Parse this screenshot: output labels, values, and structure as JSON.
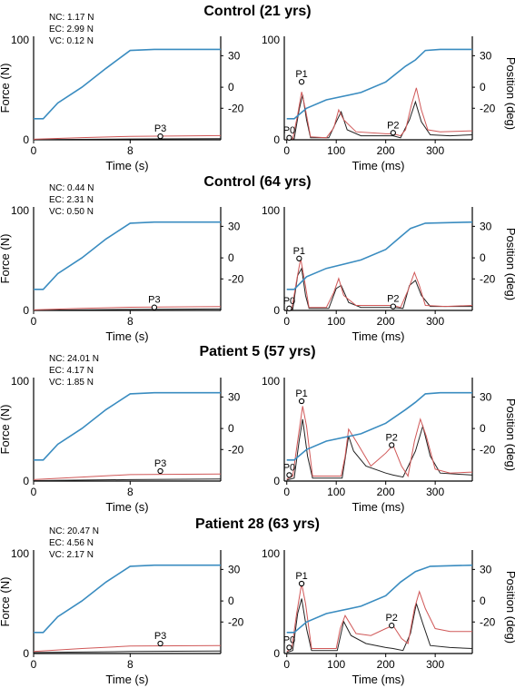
{
  "colors": {
    "position": "#3a8cc0",
    "nc": "#222222",
    "ec": "#d05858",
    "vc": "#c84040",
    "axis": "#000000"
  },
  "panels": [
    {
      "title": "Control (21 yrs)",
      "legend": [
        "NC: 1.17 N",
        "EC: 2.99 N",
        "VC: 0.12 N"
      ],
      "left": {
        "position": [
          [
            0,
            -30
          ],
          [
            0.8,
            -30
          ],
          [
            2,
            -15
          ],
          [
            4,
            0
          ],
          [
            6,
            18
          ],
          [
            8,
            35
          ],
          [
            10,
            36
          ],
          [
            12,
            36
          ],
          [
            14,
            36
          ],
          [
            15.5,
            36
          ]
        ],
        "ec": [
          [
            0,
            0.5
          ],
          [
            4,
            2.2
          ],
          [
            8,
            3.5
          ],
          [
            15.5,
            4.2
          ]
        ],
        "nc": [
          [
            0,
            0.2
          ],
          [
            8,
            0.8
          ],
          [
            15.5,
            1.1
          ]
        ],
        "marker": {
          "label": "P3",
          "x": 10.5,
          "y": 3.5
        }
      },
      "right": {
        "position": [
          [
            0,
            -30
          ],
          [
            15,
            -30
          ],
          [
            40,
            -20
          ],
          [
            80,
            -12
          ],
          [
            150,
            -5
          ],
          [
            200,
            5
          ],
          [
            240,
            20
          ],
          [
            260,
            26
          ],
          [
            280,
            35
          ],
          [
            310,
            36
          ],
          [
            375,
            36
          ]
        ],
        "ec": [
          [
            0,
            0.5
          ],
          [
            12,
            1
          ],
          [
            22,
            25
          ],
          [
            30,
            48
          ],
          [
            38,
            30
          ],
          [
            48,
            3
          ],
          [
            80,
            2
          ],
          [
            95,
            12
          ],
          [
            105,
            30
          ],
          [
            115,
            20
          ],
          [
            140,
            8
          ],
          [
            200,
            6
          ],
          [
            215,
            6
          ],
          [
            230,
            4
          ],
          [
            240,
            10
          ],
          [
            252,
            35
          ],
          [
            262,
            52
          ],
          [
            272,
            30
          ],
          [
            285,
            10
          ],
          [
            310,
            8
          ],
          [
            375,
            9
          ]
        ],
        "nc": [
          [
            0,
            0.3
          ],
          [
            15,
            1
          ],
          [
            25,
            30
          ],
          [
            32,
            45
          ],
          [
            40,
            20
          ],
          [
            48,
            2
          ],
          [
            85,
            2
          ],
          [
            100,
            18
          ],
          [
            110,
            28
          ],
          [
            122,
            10
          ],
          [
            150,
            4
          ],
          [
            215,
            4
          ],
          [
            230,
            2
          ],
          [
            248,
            20
          ],
          [
            260,
            38
          ],
          [
            272,
            18
          ],
          [
            290,
            5
          ],
          [
            330,
            4
          ],
          [
            375,
            5
          ]
        ],
        "markers": [
          {
            "label": "P0",
            "x": 5,
            "y": 2
          },
          {
            "label": "P1",
            "x": 30,
            "y": 58
          },
          {
            "label": "P2",
            "x": 215,
            "y": 7
          }
        ]
      }
    },
    {
      "title": "Control (64 yrs)",
      "legend": [
        "NC: 0.44 N",
        "EC: 2.31 N",
        "VC: 0.50 N"
      ],
      "left": {
        "position": [
          [
            0,
            -30
          ],
          [
            0.8,
            -30
          ],
          [
            2,
            -15
          ],
          [
            4,
            0
          ],
          [
            6,
            18
          ],
          [
            8,
            33
          ],
          [
            10,
            34
          ],
          [
            12,
            34
          ],
          [
            14,
            34
          ],
          [
            15.5,
            34
          ]
        ],
        "ec": [
          [
            0,
            0.5
          ],
          [
            4,
            2
          ],
          [
            8,
            3.2
          ],
          [
            15.5,
            3.8
          ]
        ],
        "nc": [
          [
            0,
            0.2
          ],
          [
            8,
            1
          ],
          [
            15.5,
            1.5
          ]
        ],
        "marker": {
          "label": "P3",
          "x": 10,
          "y": 3
        }
      },
      "right": {
        "position": [
          [
            0,
            -30
          ],
          [
            15,
            -30
          ],
          [
            40,
            -18
          ],
          [
            80,
            -10
          ],
          [
            150,
            -2
          ],
          [
            200,
            8
          ],
          [
            230,
            20
          ],
          [
            250,
            28
          ],
          [
            280,
            33
          ],
          [
            375,
            34
          ]
        ],
        "ec": [
          [
            0,
            0.5
          ],
          [
            10,
            1
          ],
          [
            20,
            30
          ],
          [
            28,
            52
          ],
          [
            36,
            30
          ],
          [
            45,
            3
          ],
          [
            80,
            3
          ],
          [
            95,
            18
          ],
          [
            105,
            32
          ],
          [
            115,
            15
          ],
          [
            140,
            5
          ],
          [
            215,
            5
          ],
          [
            230,
            3
          ],
          [
            245,
            20
          ],
          [
            258,
            38
          ],
          [
            268,
            25
          ],
          [
            280,
            5
          ],
          [
            320,
            4
          ],
          [
            375,
            5
          ]
        ],
        "nc": [
          [
            0,
            0.3
          ],
          [
            12,
            1
          ],
          [
            22,
            35
          ],
          [
            30,
            42
          ],
          [
            38,
            15
          ],
          [
            45,
            2
          ],
          [
            85,
            2
          ],
          [
            100,
            22
          ],
          [
            110,
            25
          ],
          [
            125,
            8
          ],
          [
            150,
            3
          ],
          [
            215,
            3
          ],
          [
            235,
            2
          ],
          [
            248,
            25
          ],
          [
            260,
            30
          ],
          [
            272,
            15
          ],
          [
            290,
            4
          ],
          [
            340,
            4
          ],
          [
            375,
            4
          ]
        ],
        "markers": [
          {
            "label": "P0",
            "x": 5,
            "y": 2
          },
          {
            "label": "P1",
            "x": 25,
            "y": 52
          },
          {
            "label": "P2",
            "x": 215,
            "y": 4
          }
        ]
      }
    },
    {
      "title": "Patient 5 (57 yrs)",
      "legend": [
        "NC: 24.01 N",
        "EC: 4.17 N",
        "VC: 1.85 N"
      ],
      "left": {
        "position": [
          [
            0,
            -30
          ],
          [
            0.8,
            -30
          ],
          [
            2,
            -15
          ],
          [
            4,
            0
          ],
          [
            6,
            18
          ],
          [
            8,
            33
          ],
          [
            10,
            34
          ],
          [
            12,
            34
          ],
          [
            14,
            34
          ],
          [
            15.5,
            34
          ]
        ],
        "ec": [
          [
            0,
            1.5
          ],
          [
            4,
            4
          ],
          [
            8,
            6.5
          ],
          [
            15.5,
            7
          ]
        ],
        "nc": [
          [
            0,
            0.5
          ],
          [
            8,
            1.5
          ],
          [
            15.5,
            2
          ]
        ],
        "marker": {
          "label": "P3",
          "x": 10.5,
          "y": 10
        }
      },
      "right": {
        "position": [
          [
            0,
            -30
          ],
          [
            15,
            -30
          ],
          [
            40,
            -20
          ],
          [
            80,
            -12
          ],
          [
            150,
            -5
          ],
          [
            200,
            5
          ],
          [
            240,
            18
          ],
          [
            260,
            25
          ],
          [
            280,
            33
          ],
          [
            310,
            34
          ],
          [
            375,
            34
          ]
        ],
        "ec": [
          [
            0,
            2
          ],
          [
            12,
            5
          ],
          [
            22,
            40
          ],
          [
            32,
            75
          ],
          [
            40,
            55
          ],
          [
            52,
            5
          ],
          [
            110,
            5
          ],
          [
            118,
            25
          ],
          [
            125,
            52
          ],
          [
            140,
            40
          ],
          [
            170,
            15
          ],
          [
            200,
            28
          ],
          [
            215,
            36
          ],
          [
            232,
            15
          ],
          [
            245,
            5
          ],
          [
            258,
            40
          ],
          [
            270,
            62
          ],
          [
            282,
            45
          ],
          [
            300,
            12
          ],
          [
            330,
            8
          ],
          [
            375,
            9
          ]
        ],
        "nc": [
          [
            0,
            1
          ],
          [
            15,
            3
          ],
          [
            25,
            40
          ],
          [
            32,
            62
          ],
          [
            42,
            25
          ],
          [
            52,
            3
          ],
          [
            112,
            3
          ],
          [
            125,
            45
          ],
          [
            135,
            30
          ],
          [
            160,
            15
          ],
          [
            200,
            8
          ],
          [
            215,
            6
          ],
          [
            235,
            4
          ],
          [
            260,
            30
          ],
          [
            275,
            55
          ],
          [
            290,
            25
          ],
          [
            310,
            8
          ],
          [
            375,
            6
          ]
        ],
        "markers": [
          {
            "label": "P0",
            "x": 5,
            "y": 6
          },
          {
            "label": "P1",
            "x": 30,
            "y": 80
          },
          {
            "label": "P2",
            "x": 212,
            "y": 36
          }
        ]
      }
    },
    {
      "title": "Patient 28 (63 yrs)",
      "legend": [
        "NC: 20.47 N",
        "EC: 4.56 N",
        "VC: 2.17 N"
      ],
      "left": {
        "position": [
          [
            0,
            -30
          ],
          [
            0.8,
            -30
          ],
          [
            2,
            -15
          ],
          [
            4,
            0
          ],
          [
            6,
            18
          ],
          [
            8,
            33
          ],
          [
            10,
            34
          ],
          [
            12,
            34
          ],
          [
            14,
            34
          ],
          [
            15.5,
            34
          ]
        ],
        "ec": [
          [
            0,
            2
          ],
          [
            4,
            5
          ],
          [
            8,
            7.5
          ],
          [
            15.5,
            8
          ]
        ],
        "nc": [
          [
            0,
            1
          ],
          [
            8,
            2
          ],
          [
            15.5,
            2.5
          ]
        ],
        "marker": {
          "label": "P3",
          "x": 10.5,
          "y": 10
        }
      },
      "right": {
        "position": [
          [
            0,
            -30
          ],
          [
            15,
            -30
          ],
          [
            40,
            -20
          ],
          [
            80,
            -12
          ],
          [
            150,
            -5
          ],
          [
            200,
            5
          ],
          [
            230,
            18
          ],
          [
            260,
            28
          ],
          [
            290,
            33
          ],
          [
            375,
            34
          ]
        ],
        "ec": [
          [
            0,
            2
          ],
          [
            10,
            5
          ],
          [
            20,
            40
          ],
          [
            30,
            70
          ],
          [
            38,
            50
          ],
          [
            50,
            5
          ],
          [
            100,
            5
          ],
          [
            108,
            25
          ],
          [
            118,
            38
          ],
          [
            140,
            20
          ],
          [
            170,
            18
          ],
          [
            200,
            25
          ],
          [
            215,
            28
          ],
          [
            232,
            15
          ],
          [
            245,
            10
          ],
          [
            258,
            45
          ],
          [
            268,
            62
          ],
          [
            280,
            45
          ],
          [
            300,
            25
          ],
          [
            330,
            22
          ],
          [
            375,
            22
          ]
        ],
        "nc": [
          [
            0,
            1
          ],
          [
            12,
            3
          ],
          [
            22,
            40
          ],
          [
            30,
            55
          ],
          [
            40,
            25
          ],
          [
            50,
            3
          ],
          [
            102,
            3
          ],
          [
            115,
            32
          ],
          [
            130,
            18
          ],
          [
            160,
            10
          ],
          [
            200,
            6
          ],
          [
            215,
            5
          ],
          [
            235,
            3
          ],
          [
            250,
            20
          ],
          [
            262,
            50
          ],
          [
            275,
            30
          ],
          [
            290,
            8
          ],
          [
            330,
            6
          ],
          [
            375,
            5
          ]
        ],
        "markers": [
          {
            "label": "P0",
            "x": 5,
            "y": 6
          },
          {
            "label": "P1",
            "x": 30,
            "y": 70
          },
          {
            "label": "P2",
            "x": 212,
            "y": 28
          }
        ]
      }
    }
  ],
  "axes": {
    "left": {
      "xlabel": "Time (s)",
      "ylabel": "Force (N)",
      "xlim": [
        0,
        15.5
      ],
      "ylim": [
        0,
        100
      ],
      "xticks": [
        0,
        8
      ],
      "yticks": [
        0,
        100
      ],
      "y2label": "",
      "y2lim": [
        -50,
        45
      ],
      "y2ticks": [
        30,
        0,
        -20
      ]
    },
    "right": {
      "xlabel": "Time (ms)",
      "ylabel": "",
      "y2label": "Position (deg)",
      "xlim": [
        -5,
        375
      ],
      "ylim": [
        0,
        100
      ],
      "xticks": [
        0,
        100,
        200,
        300
      ],
      "yticks": [
        0,
        100
      ],
      "y2lim": [
        -50,
        45
      ],
      "y2ticks": [
        30,
        0,
        -20
      ]
    }
  }
}
